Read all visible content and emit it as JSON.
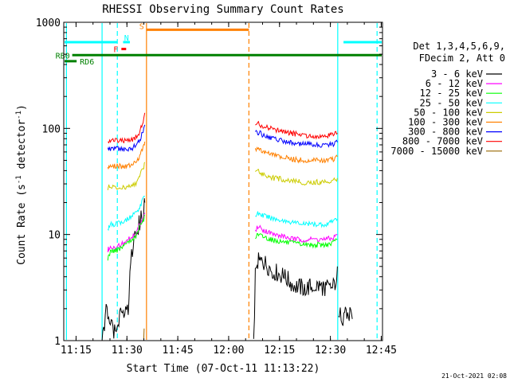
{
  "chart_data": {
    "type": "line",
    "title": "RHESSI Observing Summary Count Rates",
    "xlabel": "Start Time (07-Oct-11 11:13:22)",
    "ylabel": "Count Rate (s^-1 detector^-1)",
    "ylabel_parts": {
      "main": "Count Rate (s",
      "exp1": "-1",
      "mid": " detector",
      "exp2": "-1",
      "end": ")"
    },
    "yscale": "log",
    "ylim": [
      1,
      1000
    ],
    "xlim_minutes_since_start": [
      -2,
      92
    ],
    "x_ticks": [
      {
        "label": "11:15",
        "t": 1.63
      },
      {
        "label": "11:30",
        "t": 16.63
      },
      {
        "label": "11:45",
        "t": 31.63
      },
      {
        "label": "12:00",
        "t": 46.63
      },
      {
        "label": "12:15",
        "t": 61.63
      },
      {
        "label": "12:30",
        "t": 76.63
      },
      {
        "label": "12:45",
        "t": 91.63
      }
    ],
    "y_ticks": [
      {
        "label": "1",
        "v": 1
      },
      {
        "label": "10",
        "v": 10
      },
      {
        "label": "100",
        "v": 100
      },
      {
        "label": "1000",
        "v": 1000
      }
    ],
    "legend": {
      "header": [
        "Det 1,3,4,5,6,9,",
        "FDecim 2, Att 0"
      ],
      "placement": "right"
    },
    "series": [
      {
        "name": "3 - 6 keV",
        "color": "#000000",
        "segments": [
          {
            "t": [
              9.3,
              10.0,
              10.5,
              11.0,
              12.0,
              13.0,
              14.0,
              15.0,
              16.0,
              17.0,
              18.0,
              19.0,
              19.8,
              20.4,
              21.0,
              21.6,
              21.9
            ],
            "v": [
              1.0,
              1.5,
              1.9,
              1.7,
              1.4,
              1.2,
              1.4,
              1.8,
              2.1,
              2.0,
              7.0,
              9.0,
              11.0,
              13.0,
              15.0,
              17.0,
              20.0
            ]
          },
          {
            "t": [
              54.0,
              54.5,
              55.0,
              57.0,
              60.0,
              63.0,
              66.0,
              69.0,
              72.0,
              75.0,
              77.0,
              78.0,
              78.7
            ],
            "v": [
              1.0,
              4.0,
              5.5,
              5.5,
              4.5,
              4.0,
              3.3,
              3.1,
              3.3,
              3.2,
              3.0,
              3.5,
              5.0
            ]
          },
          {
            "t": [
              79.0,
              79.8,
              80.6,
              81.5,
              82.4,
              83.1
            ],
            "v": [
              1.6,
              1.8,
              1.6,
              1.8,
              1.7,
              1.6
            ]
          }
        ]
      },
      {
        "name": "6 - 12 keV",
        "color": "#ff00ff",
        "segments": [
          {
            "t": [
              11.0,
              11.3,
              12.0,
              13.0,
              14.0,
              15.0,
              16.0,
              17.0,
              18.0,
              19.0,
              19.8,
              20.4,
              21.0,
              21.6,
              21.9
            ],
            "v": [
              7.0,
              7.5,
              7.8,
              7.6,
              7.8,
              8.0,
              8.5,
              9.0,
              9.5,
              10.0,
              11.0,
              12.5,
              13.5,
              15.0,
              16.0
            ]
          },
          {
            "t": [
              54.5,
              55.0,
              57.0,
              60.0,
              63.0,
              66.0,
              69.0,
              72.0,
              75.0,
              77.0,
              78.0,
              78.7
            ],
            "v": [
              10.5,
              12.0,
              11.0,
              10.0,
              9.5,
              9.0,
              9.0,
              9.0,
              9.0,
              9.2,
              9.5,
              10.0
            ]
          }
        ]
      },
      {
        "name": "12 - 25 keV",
        "color": "#00ff00",
        "segments": [
          {
            "t": [
              11.0,
              11.3,
              12.0,
              13.0,
              14.0,
              15.0,
              16.0,
              17.0,
              18.0,
              19.0,
              19.8,
              20.4,
              21.0,
              21.6,
              21.9
            ],
            "v": [
              6.0,
              6.5,
              7.0,
              7.0,
              7.2,
              7.5,
              8.0,
              8.5,
              9.0,
              9.5,
              10.5,
              12.0,
              13.0,
              14.0,
              15.0
            ]
          },
          {
            "t": [
              54.5,
              55.0,
              57.0,
              60.0,
              63.0,
              66.0,
              69.0,
              72.0,
              75.0,
              77.0,
              78.0,
              78.7
            ],
            "v": [
              9.0,
              10.0,
              9.5,
              8.8,
              8.5,
              8.2,
              8.0,
              8.0,
              8.0,
              8.2,
              8.5,
              9.0
            ]
          }
        ]
      },
      {
        "name": "25 - 50 keV",
        "color": "#00ffff",
        "segments": [
          {
            "t": [
              11.0,
              11.3,
              12.0,
              13.0,
              14.0,
              15.0,
              16.0,
              17.0,
              18.0,
              19.0,
              19.8,
              20.4,
              21.0,
              21.6,
              21.9
            ],
            "v": [
              11.0,
              12.0,
              12.5,
              12.5,
              12.8,
              13.0,
              13.5,
              14.0,
              15.0,
              16.0,
              17.0,
              18.0,
              20.0,
              22.0,
              23.0
            ]
          },
          {
            "t": [
              54.5,
              55.0,
              57.0,
              60.0,
              63.0,
              66.0,
              69.0,
              72.0,
              75.0,
              77.0,
              78.0,
              78.7
            ],
            "v": [
              15.0,
              16.0,
              15.0,
              14.0,
              13.5,
              13.0,
              12.5,
              12.5,
              12.5,
              13.0,
              13.5,
              14.0
            ]
          }
        ]
      },
      {
        "name": "50 - 100 keV",
        "color": "#cccc00",
        "segments": [
          {
            "t": [
              11.0,
              11.3,
              12.0,
              13.0,
              14.0,
              15.0,
              16.0,
              17.0,
              18.0,
              19.0,
              19.8,
              20.4,
              21.0,
              21.6,
              21.9
            ],
            "v": [
              26.0,
              28.0,
              28.0,
              28.0,
              28.0,
              28.0,
              28.0,
              28.0,
              29.0,
              30.0,
              32.0,
              35.0,
              40.0,
              44.0,
              48.0
            ]
          },
          {
            "t": [
              54.5,
              55.0,
              57.0,
              60.0,
              63.0,
              66.0,
              69.0,
              72.0,
              75.0,
              77.0,
              78.0,
              78.7
            ],
            "v": [
              38.0,
              40.0,
              37.0,
              34.0,
              33.0,
              32.0,
              31.0,
              31.0,
              31.5,
              32.0,
              33.0,
              34.0
            ]
          }
        ]
      },
      {
        "name": "100 - 300 keV",
        "color": "#ff8000",
        "segments": [
          {
            "t": [
              11.0,
              11.3,
              12.0,
              13.0,
              14.0,
              15.0,
              16.0,
              17.0,
              18.0,
              19.0,
              19.8,
              20.4,
              21.0,
              21.6,
              21.9
            ],
            "v": [
              42.0,
              44.0,
              44.0,
              44.0,
              44.0,
              44.0,
              44.0,
              44.0,
              45.0,
              47.0,
              50.0,
              55.0,
              62.0,
              68.0,
              75.0
            ]
          },
          {
            "t": [
              54.5,
              55.0,
              57.0,
              60.0,
              63.0,
              66.0,
              69.0,
              72.0,
              75.0,
              77.0,
              78.0,
              78.7
            ],
            "v": [
              62.0,
              65.0,
              60.0,
              56.0,
              53.0,
              51.0,
              50.0,
              50.0,
              50.0,
              51.0,
              52.0,
              54.0
            ]
          }
        ]
      },
      {
        "name": "300 - 800 keV",
        "color": "#0000ff",
        "segments": [
          {
            "t": [
              11.0,
              11.3,
              12.0,
              13.0,
              14.0,
              15.0,
              16.0,
              17.0,
              18.0,
              19.0,
              19.8,
              20.4,
              21.0,
              21.6,
              21.9
            ],
            "v": [
              62.0,
              64.0,
              64.0,
              64.0,
              64.0,
              64.0,
              64.0,
              64.0,
              65.0,
              68.0,
              72.0,
              78.0,
              88.0,
              98.0,
              108.0
            ]
          },
          {
            "t": [
              54.5,
              55.0,
              57.0,
              60.0,
              63.0,
              66.0,
              69.0,
              72.0,
              75.0,
              77.0,
              78.0,
              78.7
            ],
            "v": [
              90.0,
              93.0,
              86.0,
              80.0,
              76.0,
              73.0,
              71.0,
              70.0,
              70.0,
              71.0,
              72.0,
              74.0
            ]
          }
        ]
      },
      {
        "name": "800 - 7000 keV",
        "color": "#ff0000",
        "segments": [
          {
            "t": [
              11.0,
              11.3,
              12.0,
              13.0,
              14.0,
              15.0,
              16.0,
              17.0,
              18.0,
              19.0,
              19.8,
              20.4,
              21.0,
              21.6,
              21.9
            ],
            "v": [
              75.0,
              77.0,
              77.0,
              77.0,
              77.0,
              77.0,
              77.0,
              77.0,
              78.0,
              81.0,
              86.0,
              93.0,
              105.0,
              120.0,
              140.0
            ]
          },
          {
            "t": [
              54.5,
              55.0,
              57.0,
              60.0,
              63.0,
              66.0,
              69.0,
              72.0,
              75.0,
              77.0,
              78.0,
              78.7
            ],
            "v": [
              108.0,
              112.0,
              104.0,
              97.0,
              93.0,
              89.0,
              86.0,
              85.0,
              85.0,
              86.0,
              88.0,
              90.0
            ]
          }
        ]
      },
      {
        "name": "7000 - 15000 keV",
        "color": "#996600",
        "segments": [
          {
            "t": [
              21.6,
              21.7
            ],
            "v": [
              1.0,
              1.3
            ]
          }
        ]
      }
    ],
    "flag_bars": [
      {
        "label": "",
        "color": "#00ffff",
        "t": [
          -2.0,
          13.8
        ],
        "v": 650
      },
      {
        "label": "",
        "color": "#00ffff",
        "t": [
          80.5,
          92.0
        ],
        "v": 650
      },
      {
        "label": "N",
        "color": "#00ffff",
        "t": [
          15.5,
          17.5
        ],
        "v": 650
      },
      {
        "label": "F",
        "color": "#ff0000",
        "t": [
          15.0,
          16.4
        ],
        "v": 560
      },
      {
        "label": "S",
        "color": "#ff8000",
        "t": [
          22.4,
          52.6
        ],
        "v": 850
      },
      {
        "label": "RB0",
        "color": "#008000",
        "t": [
          0.5,
          92.0
        ],
        "v": 490
      },
      {
        "label": "RD6",
        "color": "#008000",
        "t": [
          -2.0,
          1.8
        ],
        "v": 430
      }
    ],
    "vertical_markers": [
      {
        "color": "#00ffff",
        "style": "solid",
        "t": -1.2
      },
      {
        "color": "#00ffff",
        "style": "dashed",
        "t": 13.8
      },
      {
        "color": "#00ffff",
        "style": "solid",
        "t": 9.3
      },
      {
        "color": "#ff8000",
        "style": "solid",
        "t": 22.4
      },
      {
        "color": "#ff8000",
        "style": "dashed",
        "t": 52.6
      },
      {
        "color": "#00ffff",
        "style": "solid",
        "t": 78.8
      },
      {
        "color": "#00ffff",
        "style": "dashed",
        "t": 90.4
      }
    ]
  },
  "timestamp": "21-Oct-2021 02:08"
}
